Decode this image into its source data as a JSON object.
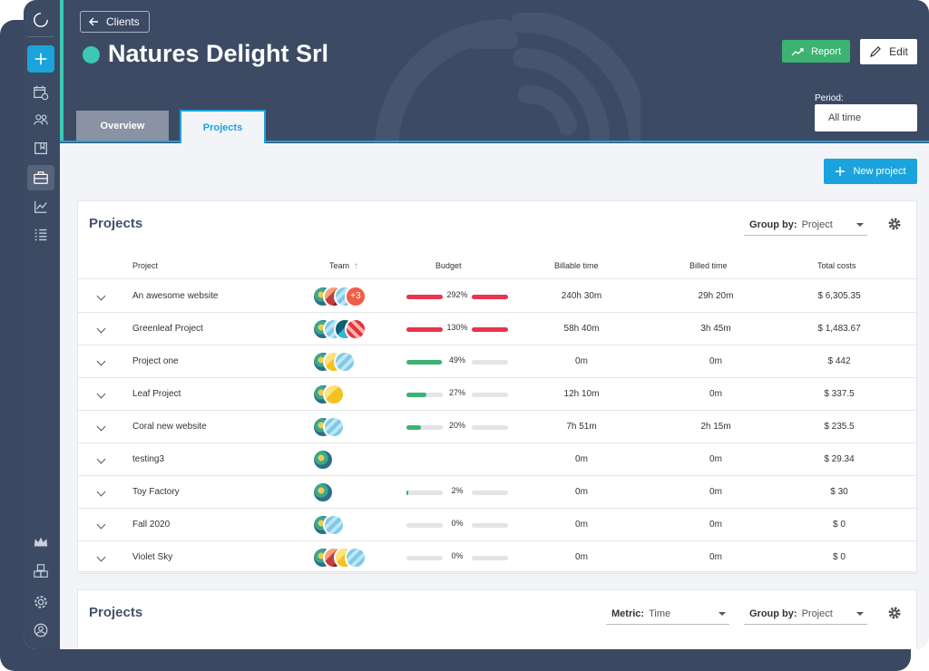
{
  "client": {
    "back_label": "Clients",
    "name": "Natures Delight Srl",
    "report_label": "Report",
    "edit_label": "Edit"
  },
  "period": {
    "label": "Period:",
    "value": "All time"
  },
  "tabs": [
    {
      "label": "Overview"
    },
    {
      "label": "Projects"
    }
  ],
  "new_project_label": "New project",
  "card1": {
    "title": "Projects",
    "group_by_label": "Group by:",
    "group_by_value": "Project",
    "columns": [
      "Project",
      "Team",
      "Budget",
      "Billable time",
      "Billed time",
      "Total costs"
    ],
    "rows": [
      {
        "name": "An awesome website",
        "avatars": 3,
        "more": "+3",
        "budget_pct": "292%",
        "budget_fraction": 1.0,
        "budget_color": "#e8344e",
        "over": true,
        "billable": "240h 30m",
        "billed": "29h 20m",
        "cost": "$ 6,305.35"
      },
      {
        "name": "Greenleaf Project",
        "avatars": 4,
        "more": "",
        "budget_pct": "130%",
        "budget_fraction": 1.0,
        "budget_color": "#e8344e",
        "over": true,
        "billable": "58h 40m",
        "billed": "3h 45m",
        "cost": "$ 1,483.67"
      },
      {
        "name": "Project one",
        "avatars": 3,
        "more": "",
        "budget_pct": "49%",
        "budget_fraction": 0.98,
        "budget_color": "#3cb371",
        "over": false,
        "billable": "0m",
        "billed": "0m",
        "cost": "$ 442"
      },
      {
        "name": "Leaf Project",
        "avatars": 2,
        "more": "",
        "budget_pct": "27%",
        "budget_fraction": 0.54,
        "budget_color": "#3cb371",
        "over": false,
        "billable": "12h 10m",
        "billed": "0m",
        "cost": "$ 337.5"
      },
      {
        "name": "Coral new website",
        "avatars": 2,
        "more": "",
        "budget_pct": "20%",
        "budget_fraction": 0.4,
        "budget_color": "#3cb371",
        "over": false,
        "billable": "7h 51m",
        "billed": "2h 15m",
        "cost": "$ 235.5"
      },
      {
        "name": "testing3",
        "avatars": 1,
        "more": "",
        "budget_pct": "",
        "budget_fraction": 0,
        "budget_color": "",
        "over": false,
        "billable": "0m",
        "billed": "0m",
        "cost": "$ 29.34"
      },
      {
        "name": "Toy Factory",
        "avatars": 1,
        "more": "",
        "budget_pct": "2%",
        "budget_fraction": 0.04,
        "budget_color": "#3cb371",
        "over": false,
        "billable": "0m",
        "billed": "0m",
        "cost": "$ 30"
      },
      {
        "name": "Fall 2020",
        "avatars": 2,
        "more": "",
        "budget_pct": "0%",
        "budget_fraction": 0,
        "budget_color": "#3cb371",
        "over": false,
        "billable": "0m",
        "billed": "0m",
        "cost": "$ 0"
      },
      {
        "name": "Violet Sky",
        "avatars": 4,
        "more": "",
        "budget_pct": "0%",
        "budget_fraction": 0,
        "budget_color": "#3cb371",
        "over": false,
        "billable": "0m",
        "billed": "0m",
        "cost": "$ 0"
      }
    ]
  },
  "card2": {
    "title": "Projects",
    "metric_label": "Metric:",
    "metric_value": "Time",
    "group_by_label": "Group by:",
    "group_by_value": "Project"
  },
  "sidebar": {
    "icons": [
      "app-logo-icon",
      "add-icon",
      "calendar-clock-icon",
      "team-icon",
      "book-icon",
      "briefcase-icon",
      "chart-icon",
      "list-icon",
      "crown-icon",
      "modules-icon",
      "settings-icon",
      "user-icon"
    ],
    "active": "briefcase-icon"
  },
  "colors": {
    "accent": "#1aa3dd",
    "sidebar": "#3d4a63",
    "client_dot": "#3cc8b4",
    "report": "#3cb371",
    "over_budget": "#e8344e"
  }
}
